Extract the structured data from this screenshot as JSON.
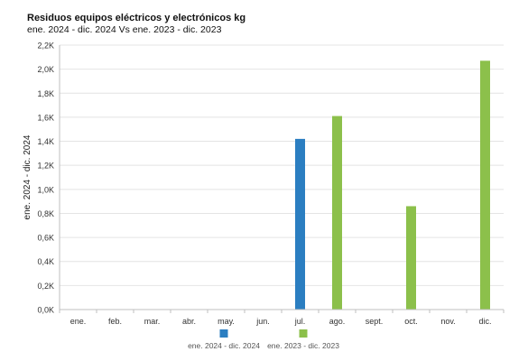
{
  "chart_data": {
    "type": "bar",
    "title": "Residuos equipos eléctricos y electrónicos kg",
    "subtitle": "ene. 2024 - dic. 2024 Vs ene. 2023 - dic. 2023",
    "ylabel": "ene. 2024 - dic. 2024",
    "xlabel": "",
    "categories": [
      "ene.",
      "feb.",
      "mar.",
      "abr.",
      "may.",
      "jun.",
      "jul.",
      "ago.",
      "sept.",
      "oct.",
      "nov.",
      "dic."
    ],
    "ylim": [
      0,
      2200
    ],
    "yticks": [
      {
        "value": 0,
        "label": "0,0K"
      },
      {
        "value": 200,
        "label": "0,2K"
      },
      {
        "value": 400,
        "label": "0,4K"
      },
      {
        "value": 600,
        "label": "0,6K"
      },
      {
        "value": 800,
        "label": "0,8K"
      },
      {
        "value": 1000,
        "label": "1,0K"
      },
      {
        "value": 1200,
        "label": "1,2K"
      },
      {
        "value": 1400,
        "label": "1,4K"
      },
      {
        "value": 1600,
        "label": "1,6K"
      },
      {
        "value": 1800,
        "label": "1,8K"
      },
      {
        "value": 2000,
        "label": "2,0K"
      },
      {
        "value": 2200,
        "label": "2,2K"
      }
    ],
    "grid": true,
    "legend_position": "bottom",
    "series": [
      {
        "name": "ene. 2024 - dic. 2024",
        "color": "#2b7ec1",
        "values": [
          0,
          0,
          0,
          0,
          0,
          0,
          1420,
          0,
          0,
          0,
          0,
          0
        ]
      },
      {
        "name": "ene. 2023 - dic. 2023",
        "color": "#8cc04b",
        "values": [
          0,
          0,
          0,
          0,
          0,
          0,
          0,
          1610,
          0,
          860,
          0,
          2070
        ]
      }
    ]
  }
}
